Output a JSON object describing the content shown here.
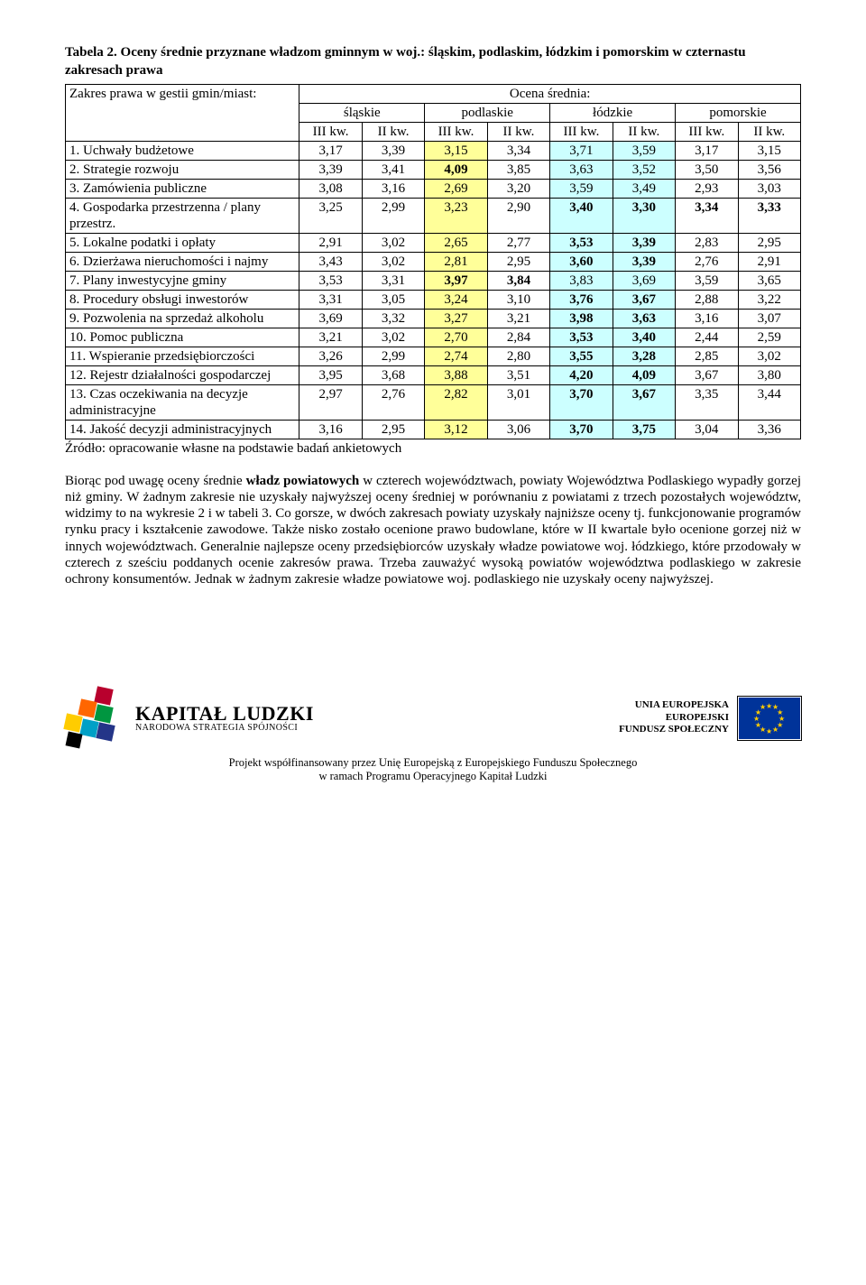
{
  "title": "Tabela 2. Oceny średnie przyznane władzom gminnym w woj.: śląskim, podlaskim, łódzkim i pomorskim w czternastu zakresach prawa",
  "headers": {
    "zakres_label": "Zakres prawa w gestii gmin/miast:",
    "ocena_label": "Ocena średnia:",
    "regions": [
      "śląskie",
      "podlaskie",
      "łódzkie",
      "pomorskie"
    ],
    "sub": [
      "III kw.",
      "II kw.",
      "III kw.",
      "II kw.",
      "III kw.",
      "II kw.",
      "III kw.",
      "II kw."
    ]
  },
  "rows": [
    {
      "label": "1. Uchwały budżetowe",
      "v": [
        "3,17",
        "3,39",
        "3,15",
        "3,34",
        "3,71",
        "3,59",
        "3,17",
        "3,15"
      ],
      "hl": [
        0,
        0,
        1,
        0,
        2,
        2,
        0,
        0
      ]
    },
    {
      "label": "2. Strategie rozwoju",
      "v": [
        "3,39",
        "3,41",
        "4,09",
        "3,85",
        "3,63",
        "3,52",
        "3,50",
        "3,56"
      ],
      "hl": [
        0,
        0,
        1,
        0,
        2,
        2,
        0,
        0
      ],
      "bold": [
        0,
        0,
        1,
        0,
        0,
        0,
        0,
        0
      ]
    },
    {
      "label": "3. Zamówienia publiczne",
      "v": [
        "3,08",
        "3,16",
        "2,69",
        "3,20",
        "3,59",
        "3,49",
        "2,93",
        "3,03"
      ],
      "hl": [
        0,
        0,
        1,
        0,
        2,
        2,
        0,
        0
      ]
    },
    {
      "label": "4. Gospodarka przestrzenna / plany przestrz.",
      "v": [
        "3,25",
        "2,99",
        "3,23",
        "2,90",
        "3,40",
        "3,30",
        "3,34",
        "3,33"
      ],
      "hl": [
        0,
        0,
        1,
        0,
        2,
        2,
        0,
        0
      ],
      "bold": [
        0,
        0,
        0,
        0,
        1,
        1,
        1,
        1
      ]
    },
    {
      "label": "5. Lokalne podatki i opłaty",
      "v": [
        "2,91",
        "3,02",
        "2,65",
        "2,77",
        "3,53",
        "3,39",
        "2,83",
        "2,95"
      ],
      "hl": [
        0,
        0,
        1,
        0,
        2,
        2,
        0,
        0
      ],
      "bold": [
        0,
        0,
        0,
        0,
        1,
        1,
        0,
        0
      ]
    },
    {
      "label": "6. Dzierżawa nieruchomości i najmy",
      "v": [
        "3,43",
        "3,02",
        "2,81",
        "2,95",
        "3,60",
        "3,39",
        "2,76",
        "2,91"
      ],
      "hl": [
        0,
        0,
        1,
        0,
        2,
        2,
        0,
        0
      ],
      "bold": [
        0,
        0,
        0,
        0,
        1,
        1,
        0,
        0
      ]
    },
    {
      "label": "7. Plany inwestycyjne gminy",
      "v": [
        "3,53",
        "3,31",
        "3,97",
        "3,84",
        "3,83",
        "3,69",
        "3,59",
        "3,65"
      ],
      "hl": [
        0,
        0,
        1,
        0,
        2,
        2,
        0,
        0
      ],
      "bold": [
        0,
        0,
        1,
        1,
        0,
        0,
        0,
        0
      ]
    },
    {
      "label": "8. Procedury obsługi inwestorów",
      "v": [
        "3,31",
        "3,05",
        "3,24",
        "3,10",
        "3,76",
        "3,67",
        "2,88",
        "3,22"
      ],
      "hl": [
        0,
        0,
        1,
        0,
        2,
        2,
        0,
        0
      ],
      "bold": [
        0,
        0,
        0,
        0,
        1,
        1,
        0,
        0
      ]
    },
    {
      "label": "9. Pozwolenia na sprzedaż alkoholu",
      "v": [
        "3,69",
        "3,32",
        "3,27",
        "3,21",
        "3,98",
        "3,63",
        "3,16",
        "3,07"
      ],
      "hl": [
        0,
        0,
        1,
        0,
        2,
        2,
        0,
        0
      ],
      "bold": [
        0,
        0,
        0,
        0,
        1,
        1,
        0,
        0
      ]
    },
    {
      "label": "10. Pomoc publiczna",
      "v": [
        "3,21",
        "3,02",
        "2,70",
        "2,84",
        "3,53",
        "3,40",
        "2,44",
        "2,59"
      ],
      "hl": [
        0,
        0,
        1,
        0,
        2,
        2,
        0,
        0
      ],
      "bold": [
        0,
        0,
        0,
        0,
        1,
        1,
        0,
        0
      ]
    },
    {
      "label": "11. Wspieranie przedsiębiorczości",
      "v": [
        "3,26",
        "2,99",
        "2,74",
        "2,80",
        "3,55",
        "3,28",
        "2,85",
        "3,02"
      ],
      "hl": [
        0,
        0,
        1,
        0,
        2,
        2,
        0,
        0
      ],
      "bold": [
        0,
        0,
        0,
        0,
        1,
        1,
        0,
        0
      ]
    },
    {
      "label": "12. Rejestr działalności gospodarczej",
      "v": [
        "3,95",
        "3,68",
        "3,88",
        "3,51",
        "4,20",
        "4,09",
        "3,67",
        "3,80"
      ],
      "hl": [
        0,
        0,
        1,
        0,
        2,
        2,
        0,
        0
      ],
      "bold": [
        0,
        0,
        0,
        0,
        1,
        1,
        0,
        0
      ]
    },
    {
      "label": "13. Czas oczekiwania na decyzje administracyjne",
      "v": [
        "2,97",
        "2,76",
        "2,82",
        "3,01",
        "3,70",
        "3,67",
        "3,35",
        "3,44"
      ],
      "hl": [
        0,
        0,
        1,
        0,
        2,
        2,
        0,
        0
      ],
      "bold": [
        0,
        0,
        0,
        0,
        1,
        1,
        0,
        0
      ]
    },
    {
      "label": "14. Jakość decyzji administracyjnych",
      "v": [
        "3,16",
        "2,95",
        "3,12",
        "3,06",
        "3,70",
        "3,75",
        "3,04",
        "3,36"
      ],
      "hl": [
        0,
        0,
        1,
        0,
        2,
        2,
        0,
        0
      ],
      "bold": [
        0,
        0,
        0,
        0,
        1,
        1,
        0,
        0
      ]
    }
  ],
  "hl_colors": {
    "0": "#ffffff",
    "1": "#ffff99",
    "2": "#ccffff"
  },
  "source": "Źródło: opracowanie własne na podstawie badań ankietowych",
  "paragraph": "Biorąc pod uwagę oceny średnie władz powiatowych w czterech województwach, powiaty Województwa Podlaskiego wypadły gorzej niż gminy. W żadnym zakresie nie uzyskały najwyższej oceny średniej w porównaniu z powiatami z trzech pozostałych województw, widzimy to na wykresie 2 i w tabeli 3. Co gorsze, w dwóch zakresach powiaty uzyskały najniższe oceny tj. funkcjonowanie programów rynku pracy i kształcenie zawodowe. Także nisko zostało ocenione prawo budowlane, które w II kwartale było ocenione gorzej niż w innych województwach. Generalnie najlepsze oceny przedsiębiorców uzyskały władze powiatowe woj. łódzkiego, które przodowały w czterech z sześciu poddanych ocenie zakresów prawa. Trzeba zauważyć wysoką powiatów województwa podlaskiego w zakresie ochrony konsumentów. Jednak w żadnym zakresie władze powiatowe woj. podlaskiego nie uzyskały oceny najwyższej.",
  "footer": {
    "kl_big": "KAPITAŁ LUDZKI",
    "kl_small": "NARODOWA STRATEGIA SPÓJNOŚCI",
    "eu_line1": "UNIA EUROPEJSKA",
    "eu_line2": "EUROPEJSKI",
    "eu_line3": "FUNDUSZ SPOŁECZNY",
    "caption1": "Projekt współfinansowany przez Unię Europejską z Europejskiego Funduszu Społecznego",
    "caption2": "w ramach Programu Operacyjnego Kapitał Ludzki"
  },
  "kl_colors": [
    "#b8002d",
    "#ff6600",
    "#ffcc00",
    "#009640",
    "#00a0c6",
    "#243588",
    "#000000"
  ]
}
